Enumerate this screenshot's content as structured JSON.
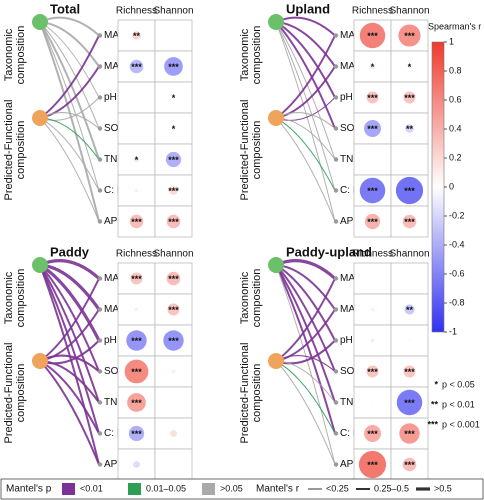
{
  "chart_data": [
    {
      "type": "correlogram",
      "title": "Total",
      "rows": [
        "MAT",
        "MAP",
        "pH",
        "SOC",
        "TN",
        "C: N",
        "AP"
      ],
      "groups": [
        [
          "Taxonomic",
          "composition"
        ],
        [
          "Predicted-Functional",
          "composition"
        ]
      ],
      "series": [
        {
          "name": "Richness",
          "values": [
            0.25,
            -0.4,
            0.02,
            0.02,
            -0.15,
            0.1,
            0.4
          ],
          "significance": [
            "**",
            "***",
            null,
            null,
            "*",
            null,
            "***"
          ]
        },
        {
          "name": "Shannon",
          "values": [
            0.02,
            -0.55,
            0.1,
            -0.1,
            -0.45,
            0.25,
            0.4
          ],
          "significance": [
            null,
            "***",
            "*",
            "*",
            "***",
            "***",
            "***"
          ]
        }
      ],
      "mantel_p": [
        [
          ">0.05",
          ">0.05",
          ">0.05",
          ">0.05",
          ">0.05",
          ">0.05",
          ">0.05"
        ],
        [
          "<0.01",
          "<0.01",
          ">0.05",
          ">0.05",
          "0.01–0.05",
          ">0.05",
          ">0.05"
        ]
      ],
      "mantel_r": [
        [
          "0.25–0.5",
          "0.25–0.5",
          "<0.25",
          "<0.25",
          "0.25–0.5",
          "<0.25",
          "0.25–0.5"
        ],
        [
          "0.25–0.5",
          "0.25–0.5",
          "<0.25",
          "<0.25",
          "<0.25",
          "<0.25",
          "<0.25"
        ]
      ]
    },
    {
      "type": "correlogram",
      "title": "Upland",
      "rows": [
        "MAT",
        "MAP",
        "pH",
        "SOC",
        "TN",
        "C: N",
        "AP"
      ],
      "groups": [
        [
          "Taxonomic",
          "composition"
        ],
        [
          "Predicted-Functional",
          "composition"
        ]
      ],
      "series": [
        {
          "name": "Richness",
          "values": [
            0.75,
            0.15,
            0.35,
            -0.5,
            0.02,
            -0.75,
            0.45
          ],
          "significance": [
            "***",
            "*",
            "***",
            "***",
            null,
            "***",
            "***"
          ]
        },
        {
          "name": "Shannon",
          "values": [
            0.65,
            0.1,
            0.35,
            -0.25,
            0.02,
            -0.8,
            0.4
          ],
          "significance": [
            "***",
            "*",
            "***",
            "**",
            null,
            "***",
            "***"
          ]
        }
      ],
      "mantel_p": [
        [
          "<0.01",
          "<0.01",
          "<0.01",
          "<0.01",
          ">0.05",
          ">0.05",
          ">0.05"
        ],
        [
          "<0.01",
          "<0.01",
          "<0.01",
          ">0.05",
          ">0.05",
          "0.01–0.05",
          ">0.05"
        ]
      ],
      "mantel_r": [
        [
          "0.25–0.5",
          "0.25–0.5",
          "0.25–0.5",
          "0.25–0.5",
          "<0.25",
          "<0.25",
          "<0.25"
        ],
        [
          "0.25–0.5",
          "0.25–0.5",
          "<0.25",
          "<0.25",
          "<0.25",
          "<0.25",
          "<0.25"
        ]
      ]
    },
    {
      "type": "correlogram",
      "title": "Paddy",
      "rows": [
        "MAT",
        "MAP",
        "pH",
        "SOC",
        "TN",
        "C: N",
        "AP"
      ],
      "groups": [
        [
          "Taxonomic",
          "composition"
        ],
        [
          "Predicted-Functional",
          "composition"
        ]
      ],
      "series": [
        {
          "name": "Richness",
          "values": [
            0.35,
            0.1,
            -0.6,
            0.7,
            0.55,
            -0.45,
            -0.2
          ],
          "significance": [
            "***",
            null,
            "***",
            "***",
            "***",
            "***",
            null
          ]
        },
        {
          "name": "Shannon",
          "values": [
            0.4,
            0.35,
            -0.6,
            0.1,
            -0.05,
            0.2,
            0.02
          ],
          "significance": [
            "***",
            "***",
            "***",
            null,
            null,
            null,
            null
          ]
        }
      ],
      "mantel_p": [
        [
          "<0.01",
          "<0.01",
          "<0.01",
          "<0.01",
          "<0.01",
          "<0.01",
          "<0.01"
        ],
        [
          "<0.01",
          "<0.01",
          "<0.01",
          "<0.01",
          "<0.01",
          "<0.01",
          "<0.01"
        ]
      ],
      "mantel_r": [
        [
          ">0.5",
          ">0.5",
          ">0.5",
          "0.25–0.5",
          "0.25–0.5",
          "0.25–0.5",
          "0.25–0.5"
        ],
        [
          "0.25–0.5",
          "0.25–0.5",
          "0.25–0.5",
          "0.25–0.5",
          "0.25–0.5",
          "0.25–0.5",
          "0.25–0.5"
        ]
      ]
    },
    {
      "type": "correlogram",
      "title": "Paddy-upland",
      "rows": [
        "MAT",
        "MAP",
        "pH",
        "SOC",
        "TN",
        "C: N",
        "AP"
      ],
      "groups": [
        [
          "Taxonomic",
          "composition"
        ],
        [
          "Predicted-Functional",
          "composition"
        ]
      ],
      "series": [
        {
          "name": "Richness",
          "values": [
            0.02,
            0.1,
            -0.1,
            0.35,
            0.05,
            0.5,
            0.8
          ],
          "significance": [
            null,
            null,
            null,
            "***",
            null,
            "***",
            "***"
          ]
        },
        {
          "name": "Shannon",
          "values": [
            0.02,
            -0.3,
            -0.05,
            0.35,
            -0.75,
            0.6,
            0.4
          ],
          "significance": [
            null,
            "**",
            null,
            "***",
            "***",
            "***",
            "***"
          ]
        }
      ],
      "mantel_p": [
        [
          "<0.01",
          "<0.01",
          "<0.01",
          "<0.01",
          "<0.01",
          "<0.01",
          ">0.05"
        ],
        [
          "<0.01",
          "<0.01",
          "<0.01",
          "<0.01",
          ">0.05",
          "0.01–0.05",
          ">0.05"
        ]
      ],
      "mantel_r": [
        [
          ">0.5",
          "0.25–0.5",
          "0.25–0.5",
          "0.25–0.5",
          "0.25–0.5",
          "0.25–0.5",
          "<0.25"
        ],
        [
          "0.25–0.5",
          "0.25–0.5",
          "0.25–0.5",
          "<0.25",
          "<0.25",
          "<0.25",
          "<0.25"
        ]
      ]
    }
  ],
  "colorbar": {
    "title": "Spearman's r",
    "lim": [
      -1,
      1
    ],
    "ticks": [
      1,
      0.8,
      0.6,
      0.4,
      0.2,
      0,
      -0.2,
      -0.4,
      -0.6,
      -0.8,
      -1
    ],
    "colors": [
      "#3030f0",
      "#ffffff",
      "#ee3a2c"
    ]
  },
  "significance_legend": [
    {
      "symbol": "*",
      "label": "p < 0.05"
    },
    {
      "symbol": "**",
      "label": "p < 0.01"
    },
    {
      "symbol": "***",
      "label": "p < 0.001"
    }
  ],
  "node_colors": [
    "#6cc06a",
    "#f0a35a"
  ],
  "mantel_legend": {
    "p_title": "Mantel's p",
    "p_items": [
      {
        "label": "<0.01",
        "color": "#7b3294"
      },
      {
        "label": "0.01–0.05",
        "color": "#2e9e55"
      },
      {
        "label": ">0.05",
        "color": "#a9a9a9"
      }
    ],
    "r_title": "Mantel's r",
    "r_items": [
      {
        "label": "<0.25",
        "width": 1
      },
      {
        "label": "0.25–0.5",
        "width": 2
      },
      {
        "label": ">0.5",
        "width": 3.2
      }
    ]
  }
}
